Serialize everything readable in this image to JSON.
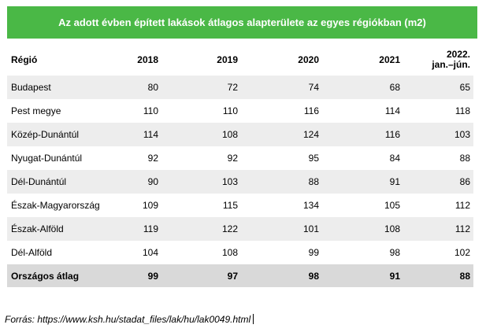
{
  "title": "Az adott évben épített lakások átlagos alapterülete az egyes régiókban (m2)",
  "columns": {
    "region": "Régió",
    "years": [
      "2018",
      "2019",
      "2020",
      "2021"
    ],
    "last_line1": "2022.",
    "last_line2": "jan.–jún."
  },
  "rows": [
    {
      "region": "Budapest",
      "values": [
        "80",
        "72",
        "74",
        "68",
        "65"
      ]
    },
    {
      "region": "Pest megye",
      "values": [
        "110",
        "110",
        "116",
        "114",
        "118"
      ]
    },
    {
      "region": "Közép-Dunántúl",
      "values": [
        "114",
        "108",
        "124",
        "116",
        "103"
      ]
    },
    {
      "region": "Nyugat-Dunántúl",
      "values": [
        "92",
        "92",
        "95",
        "84",
        "88"
      ]
    },
    {
      "region": "Dél-Dunántúl",
      "values": [
        "90",
        "103",
        "88",
        "91",
        "86"
      ]
    },
    {
      "region": "Észak-Magyarország",
      "values": [
        "109",
        "115",
        "134",
        "105",
        "112"
      ]
    },
    {
      "region": "Észak-Alföld",
      "values": [
        "119",
        "122",
        "101",
        "108",
        "112"
      ]
    },
    {
      "region": "Dél-Alföld",
      "values": [
        "104",
        "108",
        "99",
        "98",
        "102"
      ]
    }
  ],
  "total": {
    "region": "Országos átlag",
    "values": [
      "99",
      "97",
      "98",
      "91",
      "88"
    ]
  },
  "source": "Forrás: https://www.ksh.hu/stadat_files/lak/hu/lak0049.html",
  "colors": {
    "title_bg": "#4ab846",
    "row_shade": "#ededed",
    "total_bg": "#d9d9d9"
  }
}
